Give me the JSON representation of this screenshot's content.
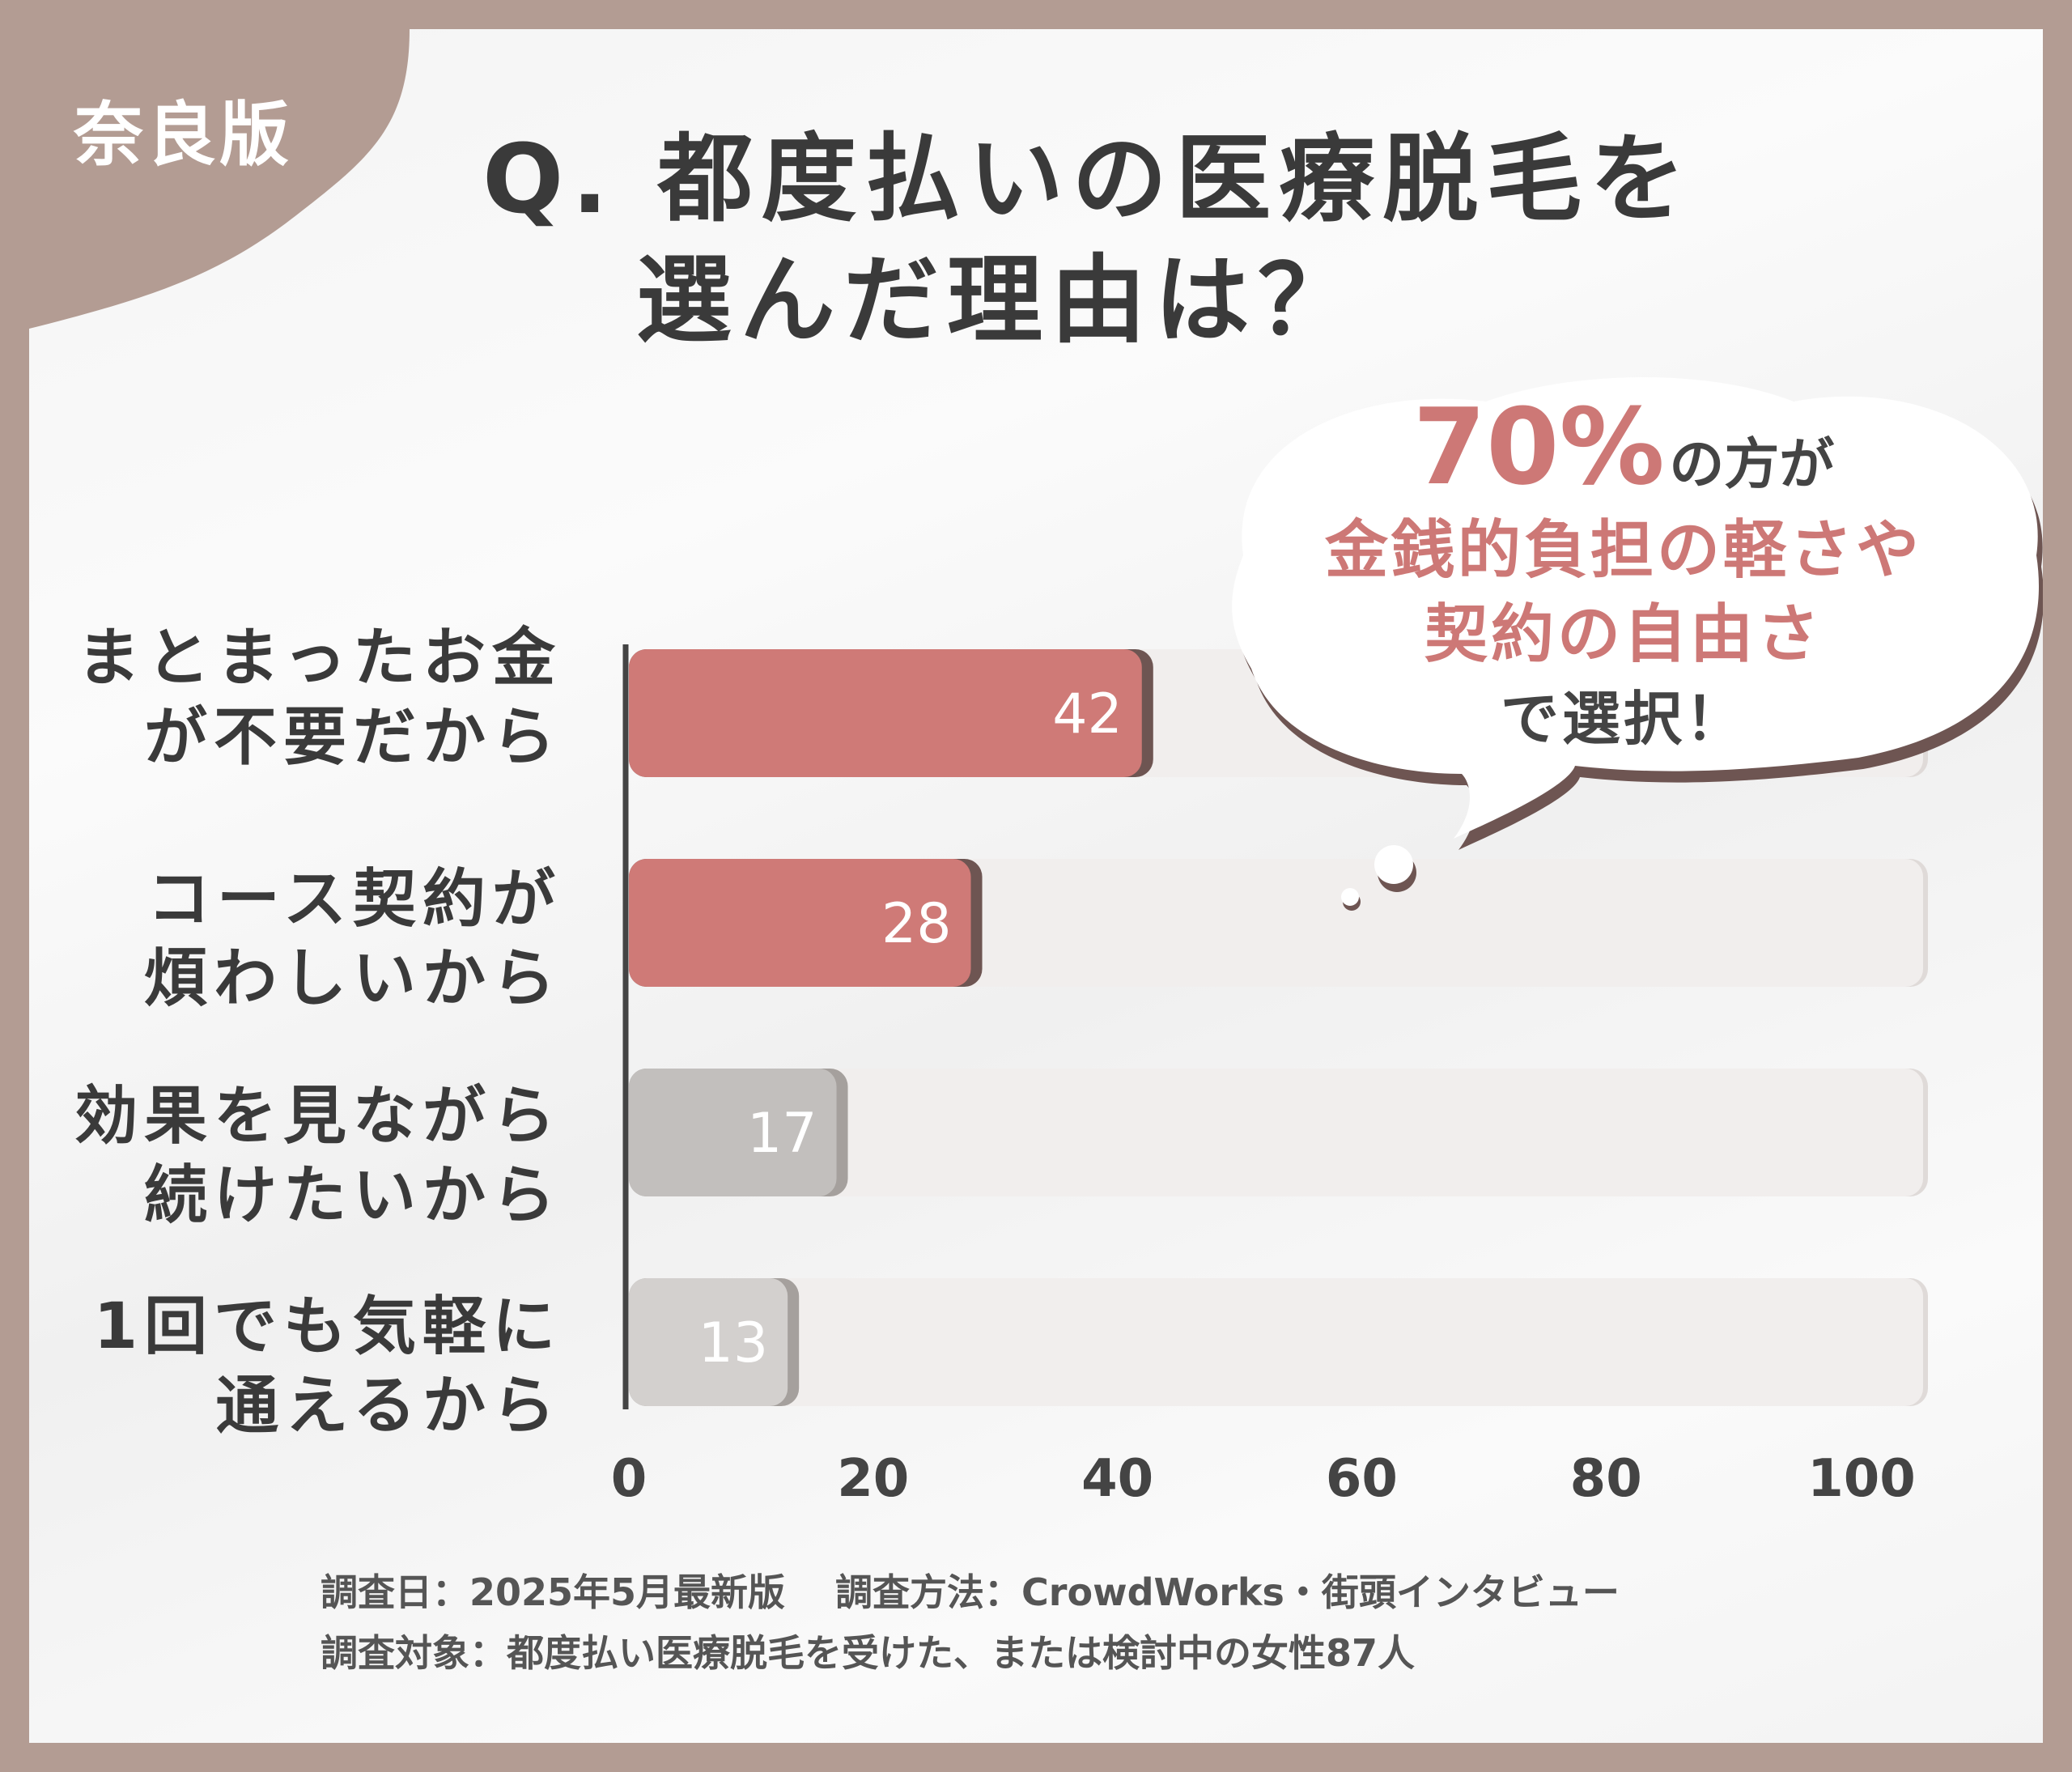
{
  "region_badge": "奈良版",
  "question": {
    "line1": "Q. 都度払いの医療脱毛を",
    "line2": "選んだ理由は？"
  },
  "callout": {
    "percent": "70%",
    "after_percent": "の方が",
    "line2": "金銭的負担の軽さや",
    "line3": "契約の自由さ",
    "line4": "で選択！"
  },
  "chart_data": {
    "type": "bar",
    "orientation": "horizontal",
    "categories": [
      [
        "まとまったお金",
        "が不要だから"
      ],
      [
        "コース契約が",
        "煩わしいから"
      ],
      [
        "効果を見ながら",
        "続けたいから"
      ],
      [
        "1回でも気軽に",
        "通えるから"
      ]
    ],
    "values": [
      42,
      28,
      17,
      13
    ],
    "value_labels": [
      "42",
      "28",
      "17",
      "13"
    ],
    "xlim": [
      0,
      100
    ],
    "x_ticks": [
      "0",
      "20",
      "40",
      "60",
      "80",
      "100"
    ],
    "grid": false,
    "colors": {
      "highlight": "#cf7a77",
      "highlight_shadow": "#6e5552",
      "muted": [
        "#c2bfbd",
        "#d3d0ce"
      ],
      "muted_shadow": "#a5a09d",
      "track": "#f1eeed",
      "track_shadow": "#dfdad8",
      "axis": "#444444"
    }
  },
  "survey": {
    "line1": "調査日：2025年5月最新版　 調査方法：CrowdWorks・街頭インタビュー",
    "line2": "調査対象：都度払い医療脱毛を受けた、または検討中の女性87人"
  },
  "colors": {
    "frame": "#b39c93",
    "accent": "#cd7876"
  }
}
